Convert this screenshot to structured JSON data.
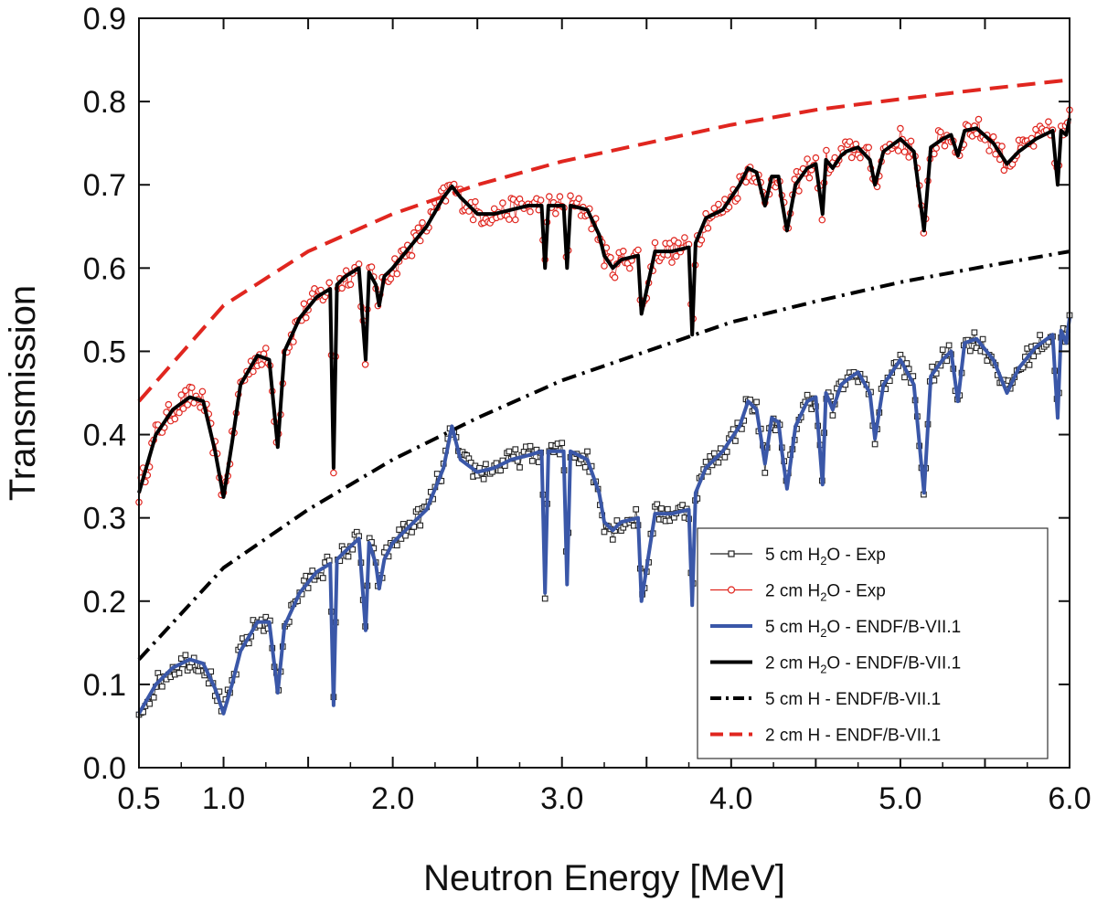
{
  "chart_data": {
    "type": "line",
    "title": "",
    "xlabel": "Neutron Energy [MeV]",
    "ylabel": "Transmission",
    "xlim": [
      0.5,
      6.0
    ],
    "ylim": [
      0.0,
      0.9
    ],
    "xticks": [
      0.5,
      1.0,
      1.5,
      2.0,
      2.5,
      3.0,
      3.5,
      4.0,
      4.5,
      5.0,
      5.5,
      6.0
    ],
    "xtick_labels": [
      "0.5",
      "1.0",
      "",
      "2.0",
      "",
      "3.0",
      "",
      "4.0",
      "",
      "5.0",
      "",
      "6.0"
    ],
    "yticks": [
      0.0,
      0.1,
      0.2,
      0.3,
      0.4,
      0.5,
      0.6,
      0.7,
      0.8,
      0.9
    ],
    "ytick_labels": [
      "0.0",
      "0.1",
      "0.2",
      "0.3",
      "0.4",
      "0.5",
      "0.6",
      "0.7",
      "0.8",
      "0.9"
    ],
    "legend_position": "bottom-right",
    "legend": [
      {
        "main": "5 cm H",
        "sub": "2",
        "rest": "O - Exp",
        "style": "markers-square",
        "color": "#222222"
      },
      {
        "main": "2 cm  H",
        "sub": "2",
        "rest": "O - Exp",
        "style": "markers-circle",
        "color": "#e0261f"
      },
      {
        "main": "5 cm H",
        "sub": "2",
        "rest": "O - ENDF/B-VII.1",
        "style": "solid",
        "color": "#3a57a8"
      },
      {
        "main": "2 cm H",
        "sub": "2",
        "rest": "O - ENDF/B-VII.1",
        "style": "solid",
        "color": "#000000"
      },
      {
        "main": "5 cm H - ENDF/B-VII.1",
        "sub": "",
        "rest": "",
        "style": "dashdot",
        "color": "#000000"
      },
      {
        "main": "2 cm H - ENDF/B-VII.1",
        "sub": "",
        "rest": "",
        "style": "dashed",
        "color": "#e0261f"
      }
    ],
    "series": [
      {
        "name": "5 cm H - ENDF/B-VII.1",
        "kind": "smooth_dashdot",
        "color": "#000000",
        "x": [
          0.5,
          1.0,
          1.5,
          2.0,
          2.5,
          3.0,
          3.5,
          4.0,
          4.5,
          5.0,
          5.5,
          6.0
        ],
        "y": [
          0.13,
          0.24,
          0.31,
          0.37,
          0.42,
          0.465,
          0.5,
          0.535,
          0.56,
          0.583,
          0.602,
          0.62
        ]
      },
      {
        "name": "2 cm H - ENDF/B-VII.1",
        "kind": "smooth_dashed",
        "color": "#e0261f",
        "x": [
          0.5,
          1.0,
          1.5,
          2.0,
          2.5,
          3.0,
          3.5,
          4.0,
          4.5,
          5.0,
          5.5,
          6.0
        ],
        "y": [
          0.44,
          0.555,
          0.62,
          0.665,
          0.7,
          0.728,
          0.75,
          0.772,
          0.79,
          0.803,
          0.815,
          0.826
        ]
      },
      {
        "name": "2 cm H2O - ENDF/B-VII.1",
        "kind": "resonance",
        "color": "#000000",
        "x": [
          0.5,
          0.6,
          0.7,
          0.8,
          0.88,
          0.95,
          1.0,
          1.05,
          1.1,
          1.2,
          1.27,
          1.32,
          1.36,
          1.45,
          1.55,
          1.63,
          1.65,
          1.67,
          1.72,
          1.8,
          1.84,
          1.86,
          1.9,
          1.92,
          1.95,
          2.0,
          2.1,
          2.2,
          2.3,
          2.35,
          2.4,
          2.5,
          2.6,
          2.7,
          2.8,
          2.88,
          2.9,
          2.92,
          3.01,
          3.03,
          3.05,
          3.15,
          3.22,
          3.25,
          3.3,
          3.35,
          3.45,
          3.47,
          3.55,
          3.65,
          3.75,
          3.77,
          3.79,
          3.85,
          3.95,
          4.05,
          4.1,
          4.15,
          4.2,
          4.24,
          4.28,
          4.3,
          4.33,
          4.38,
          4.45,
          4.5,
          4.54,
          4.56,
          4.6,
          4.65,
          4.68,
          4.75,
          4.82,
          4.85,
          4.9,
          5.0,
          5.08,
          5.14,
          5.18,
          5.25,
          5.3,
          5.34,
          5.38,
          5.45,
          5.55,
          5.63,
          5.7,
          5.8,
          5.9,
          5.93,
          5.95,
          5.98,
          6.0
        ],
        "y": [
          0.33,
          0.4,
          0.43,
          0.445,
          0.44,
          0.38,
          0.325,
          0.39,
          0.46,
          0.495,
          0.49,
          0.385,
          0.5,
          0.54,
          0.565,
          0.575,
          0.36,
          0.58,
          0.59,
          0.6,
          0.49,
          0.595,
          0.58,
          0.555,
          0.59,
          0.6,
          0.625,
          0.65,
          0.685,
          0.698,
          0.685,
          0.665,
          0.665,
          0.67,
          0.675,
          0.675,
          0.6,
          0.675,
          0.675,
          0.6,
          0.675,
          0.67,
          0.64,
          0.615,
          0.6,
          0.61,
          0.615,
          0.545,
          0.62,
          0.62,
          0.625,
          0.52,
          0.63,
          0.66,
          0.67,
          0.7,
          0.72,
          0.715,
          0.675,
          0.71,
          0.71,
          0.68,
          0.645,
          0.7,
          0.72,
          0.725,
          0.665,
          0.73,
          0.72,
          0.735,
          0.74,
          0.745,
          0.73,
          0.7,
          0.74,
          0.755,
          0.74,
          0.645,
          0.745,
          0.755,
          0.76,
          0.735,
          0.765,
          0.768,
          0.75,
          0.725,
          0.74,
          0.755,
          0.765,
          0.7,
          0.765,
          0.76,
          0.78
        ]
      },
      {
        "name": "5 cm H2O - ENDF/B-VII.1",
        "kind": "resonance",
        "color": "#3a57a8",
        "x": [
          0.5,
          0.6,
          0.7,
          0.8,
          0.88,
          0.95,
          1.0,
          1.05,
          1.1,
          1.2,
          1.27,
          1.32,
          1.36,
          1.45,
          1.55,
          1.63,
          1.65,
          1.67,
          1.72,
          1.8,
          1.84,
          1.86,
          1.9,
          1.92,
          1.95,
          2.0,
          2.1,
          2.2,
          2.3,
          2.35,
          2.4,
          2.5,
          2.6,
          2.7,
          2.8,
          2.88,
          2.9,
          2.92,
          3.01,
          3.03,
          3.05,
          3.15,
          3.22,
          3.25,
          3.3,
          3.35,
          3.45,
          3.47,
          3.55,
          3.65,
          3.75,
          3.77,
          3.79,
          3.85,
          3.95,
          4.05,
          4.1,
          4.15,
          4.2,
          4.24,
          4.28,
          4.3,
          4.33,
          4.38,
          4.45,
          4.5,
          4.54,
          4.56,
          4.6,
          4.65,
          4.68,
          4.75,
          4.82,
          4.85,
          4.9,
          5.0,
          5.08,
          5.14,
          5.18,
          5.25,
          5.3,
          5.34,
          5.38,
          5.45,
          5.55,
          5.63,
          5.7,
          5.8,
          5.9,
          5.93,
          5.95,
          5.98,
          6.0
        ],
        "y": [
          0.065,
          0.1,
          0.12,
          0.13,
          0.125,
          0.095,
          0.065,
          0.1,
          0.14,
          0.175,
          0.175,
          0.09,
          0.17,
          0.21,
          0.235,
          0.245,
          0.075,
          0.25,
          0.26,
          0.275,
          0.165,
          0.27,
          0.245,
          0.215,
          0.25,
          0.27,
          0.29,
          0.31,
          0.36,
          0.41,
          0.37,
          0.355,
          0.36,
          0.37,
          0.375,
          0.38,
          0.21,
          0.38,
          0.38,
          0.22,
          0.38,
          0.37,
          0.33,
          0.295,
          0.285,
          0.295,
          0.3,
          0.2,
          0.305,
          0.305,
          0.31,
          0.195,
          0.33,
          0.36,
          0.38,
          0.41,
          0.44,
          0.43,
          0.365,
          0.42,
          0.415,
          0.38,
          0.335,
          0.41,
          0.44,
          0.445,
          0.34,
          0.45,
          0.43,
          0.46,
          0.465,
          0.475,
          0.45,
          0.395,
          0.46,
          0.49,
          0.46,
          0.33,
          0.47,
          0.49,
          0.5,
          0.44,
          0.51,
          0.515,
          0.49,
          0.45,
          0.48,
          0.505,
          0.52,
          0.42,
          0.525,
          0.51,
          0.54
        ]
      },
      {
        "name": "2 cm H2O - Exp",
        "kind": "exp_markers",
        "marker": "circle",
        "color": "#e0261f",
        "follows": "2 cm H2O - ENDF/B-VII.1",
        "scatter": 0.014,
        "x_range": [
          0.5,
          6.0
        ]
      },
      {
        "name": "5 cm H2O - Exp",
        "kind": "exp_markers",
        "marker": "square",
        "color": "#222222",
        "follows": "5 cm H2O - ENDF/B-VII.1",
        "scatter": 0.012,
        "x_range": [
          0.5,
          6.0
        ]
      }
    ]
  }
}
